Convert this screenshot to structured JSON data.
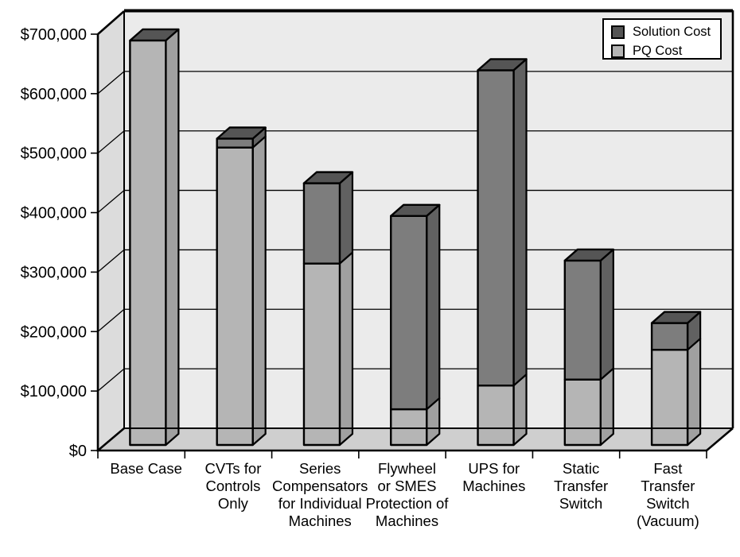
{
  "figure": {
    "title": "",
    "background": "#ffffff"
  },
  "chart_data": {
    "type": "bar",
    "variant": "3d-stacked-column",
    "stacked": true,
    "title": "",
    "xlabel": "",
    "ylabel": "",
    "categories": [
      "Base Case",
      "CVTs for Controls Only",
      "Series Compensators for Individual Machines",
      "Flywheel or SMES Protection of Machines",
      "UPS for Machines",
      "Static Transfer Switch",
      "Fast Transfer Switch (Vacuum)"
    ],
    "categories_multiline": [
      [
        "Base Case"
      ],
      [
        "CVTs for",
        "Controls",
        "Only"
      ],
      [
        "Series",
        "Compensators",
        "for Individual",
        "Machines"
      ],
      [
        "Flywheel",
        "or SMES",
        "Protection of",
        "Machines"
      ],
      [
        "UPS for",
        "Machines"
      ],
      [
        "Static",
        "Transfer",
        "Switch"
      ],
      [
        "Fast",
        "Transfer",
        "Switch",
        "(Vacuum)"
      ]
    ],
    "series": [
      {
        "name": "PQ Cost",
        "color": "#b5b5b5",
        "values": [
          680000,
          500000,
          305000,
          60000,
          100000,
          110000,
          160000
        ]
      },
      {
        "name": "Solution Cost",
        "color": "#7d7d7d",
        "values": [
          0,
          15000,
          135000,
          325000,
          530000,
          200000,
          45000
        ]
      }
    ],
    "totals": [
      680000,
      515000,
      440000,
      385000,
      630000,
      310000,
      205000
    ],
    "ylim": [
      0,
      700000
    ],
    "ytick_step": 100000,
    "ytick_labels": [
      "$0",
      "$100,000",
      "$200,000",
      "$300,000",
      "$400,000",
      "$500,000",
      "$600,000",
      "$700,000"
    ],
    "grid": true,
    "legend": {
      "position": "top-right",
      "items": [
        {
          "label": "Solution Cost",
          "color": "#555555"
        },
        {
          "label": "PQ Cost",
          "color": "#b5b5b5"
        }
      ]
    },
    "colors": {
      "plot_back_wall": "#ebebeb",
      "side_wall": "#dcdcdc",
      "floor": "#cfcfcf",
      "pq_front": "#b5b5b5",
      "pq_side": "#a0a0a0",
      "solution_front": "#7d7d7d",
      "solution_side": "#616161",
      "bar_top": "#555555",
      "outline": "#000000"
    }
  }
}
